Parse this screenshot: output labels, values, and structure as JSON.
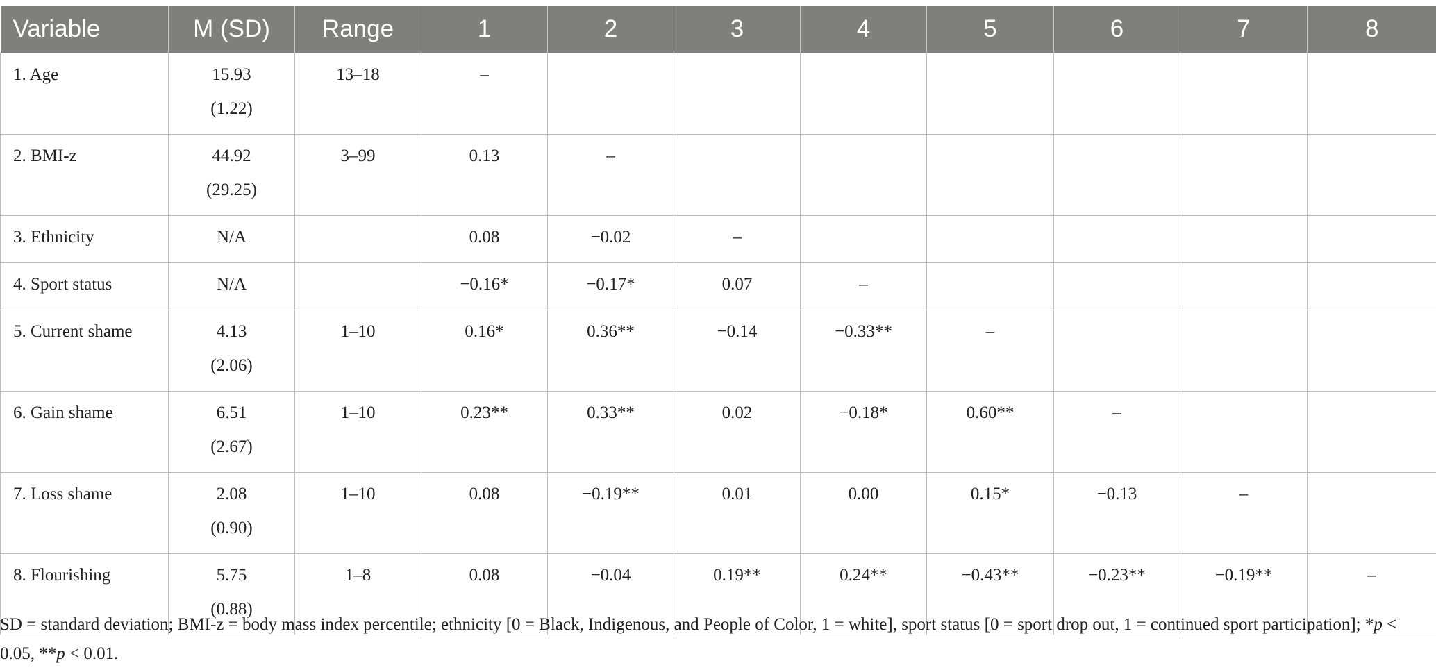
{
  "table": {
    "headers": [
      "Variable",
      "M (SD)",
      "Range",
      "1",
      "2",
      "3",
      "4",
      "5",
      "6",
      "7",
      "8"
    ],
    "rows": [
      {
        "variable": "1. Age",
        "mean": "15.93",
        "sd": "(1.22)",
        "range": "13–18",
        "cells": [
          "–",
          "",
          "",
          "",
          "",
          "",
          "",
          ""
        ]
      },
      {
        "variable": "2. BMI-z",
        "mean": "44.92",
        "sd": "(29.25)",
        "range": "3–99",
        "cells": [
          "0.13",
          "–",
          "",
          "",
          "",
          "",
          "",
          ""
        ]
      },
      {
        "variable": "3. Ethnicity",
        "mean": "N/A",
        "sd": "",
        "range": "",
        "cells": [
          "0.08",
          "−0.02",
          "–",
          "",
          "",
          "",
          "",
          ""
        ]
      },
      {
        "variable": "4. Sport status",
        "mean": "N/A",
        "sd": "",
        "range": "",
        "cells": [
          "−0.16*",
          "−0.17*",
          "0.07",
          "–",
          "",
          "",
          "",
          ""
        ]
      },
      {
        "variable": "5. Current shame",
        "mean": "4.13",
        "sd": "(2.06)",
        "range": "1–10",
        "cells": [
          "0.16*",
          "0.36**",
          "−0.14",
          "−0.33**",
          "–",
          "",
          "",
          ""
        ]
      },
      {
        "variable": "6. Gain shame",
        "mean": "6.51",
        "sd": "(2.67)",
        "range": "1–10",
        "cells": [
          "0.23**",
          "0.33**",
          "0.02",
          "−0.18*",
          "0.60**",
          "–",
          "",
          ""
        ]
      },
      {
        "variable": "7. Loss shame",
        "mean": "2.08",
        "sd": "(0.90)",
        "range": "1–10",
        "cells": [
          "0.08",
          "−0.19**",
          "0.01",
          "0.00",
          "0.15*",
          "−0.13",
          "–",
          ""
        ]
      },
      {
        "variable": "8. Flourishing",
        "mean": "5.75",
        "sd": "(0.88)",
        "range": "1–8",
        "cells": [
          "0.08",
          "−0.04",
          "0.19**",
          "0.24**",
          "−0.43**",
          "−0.23**",
          "−0.19**",
          "–"
        ]
      }
    ]
  },
  "footnote": {
    "lead": "SD = standard deviation; BMI-z = body mass index percentile; ethnicity [0 = Black, Indigenous, and People of Color, 1 = white], sport status [0 = sport drop out, 1 = continued sport participation]; *",
    "p1": "p",
    "mid": " < 0.05, **",
    "p2": "p",
    "tail": " < 0.01."
  }
}
